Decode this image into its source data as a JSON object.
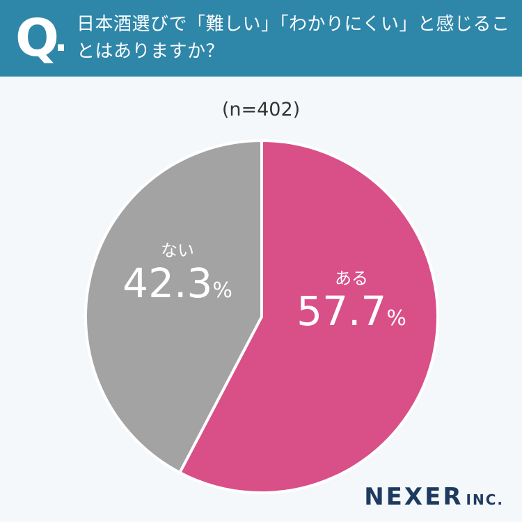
{
  "header": {
    "q_mark": "Q",
    "q_dot": ".",
    "question": "日本酒選びで「難しい」「わかりにくい」と感じることはありますか？"
  },
  "sample_text": "(n=402)",
  "chart_data": {
    "type": "pie",
    "title": "",
    "categories": [
      "ある",
      "ない"
    ],
    "values": [
      57.7,
      42.3
    ],
    "unit": "%",
    "colors": [
      "#d94f88",
      "#a3a3a3"
    ],
    "start": "12 o'clock, clockwise"
  },
  "labels": {
    "yes_cat": "ある",
    "yes_pct": "57.7",
    "no_cat": "ない",
    "no_pct": "42.3",
    "pct_sign": "%"
  },
  "brand": {
    "name": "NEXER",
    "suffix": "INC."
  }
}
